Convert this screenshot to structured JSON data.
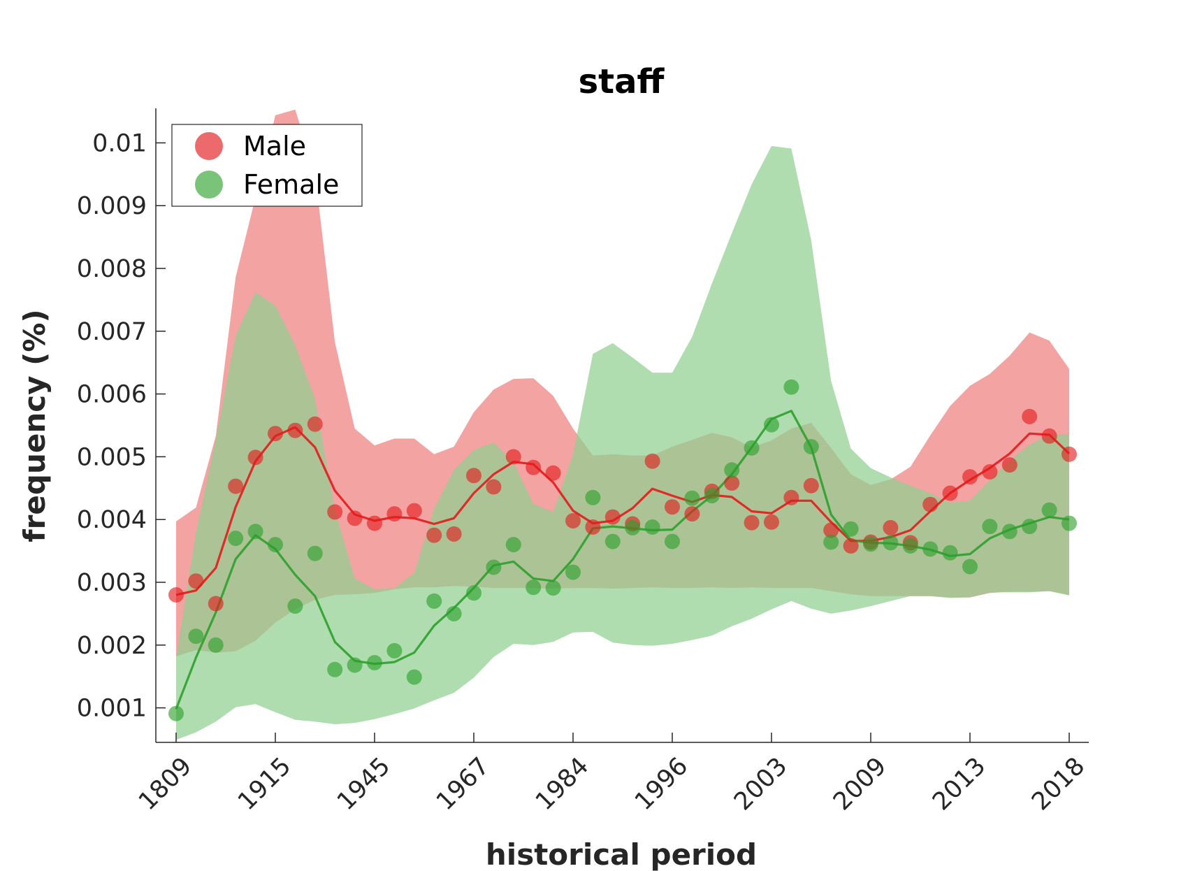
{
  "chart_data": {
    "type": "line",
    "title": "staff",
    "xlabel": "historical period",
    "ylabel": "frequency (%)",
    "ylim": [
      0.00045,
      0.01055
    ],
    "xtick_labels": [
      "1809",
      "1915",
      "1945",
      "1967",
      "1984",
      "1996",
      "2003",
      "2009",
      "2013",
      "2018"
    ],
    "ytick_values": [
      0.001,
      0.002,
      0.003,
      0.004,
      0.005,
      0.006,
      0.007,
      0.008,
      0.009,
      0.01
    ],
    "ytick_labels": [
      "0.001",
      "0.002",
      "0.003",
      "0.004",
      "0.005",
      "0.006",
      "0.007",
      "0.008",
      "0.009",
      "0.01"
    ],
    "legend_position": "top-left",
    "grid": false,
    "series": [
      {
        "name": "Male",
        "color": "#e41a1c",
        "band_color": "#f08080",
        "points": [
          0.0028,
          0.00302,
          0.00266,
          0.00453,
          0.00499,
          0.00537,
          0.00542,
          0.00552,
          0.00412,
          0.00402,
          0.00394,
          0.00409,
          0.00414,
          0.00375,
          0.00377,
          0.0047,
          0.00452,
          0.005,
          0.00483,
          0.00474,
          0.00398,
          0.00388,
          0.00404,
          0.00393,
          0.00493,
          0.0042,
          0.00409,
          0.00445,
          0.00458,
          0.00395,
          0.00396,
          0.00435,
          0.00454,
          0.00383,
          0.00358,
          0.00364,
          0.00387,
          0.00363,
          0.00424,
          0.00442,
          0.00468,
          0.00476,
          0.00487,
          0.00564,
          0.00533,
          0.00504
        ],
        "trend": [
          0.0028,
          0.00287,
          0.00323,
          0.0042,
          0.00493,
          0.00533,
          0.00547,
          0.00515,
          0.00446,
          0.00408,
          0.00398,
          0.00404,
          0.00402,
          0.00393,
          0.00402,
          0.00442,
          0.00472,
          0.00492,
          0.00488,
          0.00459,
          0.00414,
          0.00394,
          0.00398,
          0.00418,
          0.00449,
          0.00438,
          0.00428,
          0.00439,
          0.00436,
          0.00413,
          0.0041,
          0.0043,
          0.0043,
          0.00396,
          0.00366,
          0.00366,
          0.00372,
          0.00383,
          0.00413,
          0.00442,
          0.00463,
          0.00482,
          0.00505,
          0.00537,
          0.00535,
          0.00505
        ],
        "band_upper": [
          0.00397,
          0.00419,
          0.00533,
          0.00786,
          0.00913,
          0.01044,
          0.01053,
          0.00952,
          0.00683,
          0.00545,
          0.00518,
          0.00529,
          0.00529,
          0.00504,
          0.00516,
          0.00571,
          0.00607,
          0.00624,
          0.00625,
          0.00597,
          0.00545,
          0.00502,
          0.00504,
          0.00502,
          0.00502,
          0.00516,
          0.00527,
          0.00538,
          0.00531,
          0.00515,
          0.00526,
          0.00545,
          0.00554,
          0.00514,
          0.00472,
          0.00455,
          0.00464,
          0.00484,
          0.00534,
          0.00581,
          0.00613,
          0.00632,
          0.00661,
          0.00698,
          0.00685,
          0.0064
        ],
        "band_lower": [
          0.00182,
          0.00192,
          0.00188,
          0.0019,
          0.00207,
          0.00236,
          0.00257,
          0.00272,
          0.0028,
          0.00281,
          0.00283,
          0.00289,
          0.00292,
          0.00292,
          0.00294,
          0.00293,
          0.00291,
          0.00291,
          0.00291,
          0.0029,
          0.00291,
          0.00291,
          0.0029,
          0.00291,
          0.00292,
          0.00291,
          0.00291,
          0.00292,
          0.00291,
          0.00292,
          0.00291,
          0.00291,
          0.00291,
          0.00286,
          0.00281,
          0.00278,
          0.00278,
          0.00278,
          0.00278,
          0.00276,
          0.00276,
          0.00283,
          0.00285,
          0.00285,
          0.00286,
          0.0028
        ]
      },
      {
        "name": "Female",
        "color": "#2ca02c",
        "band_color": "#90d090",
        "points": [
          0.00091,
          0.00214,
          0.002,
          0.0037,
          0.00381,
          0.0036,
          0.00262,
          0.00346,
          0.00161,
          0.00168,
          0.00172,
          0.00191,
          0.00149,
          0.0027,
          0.0025,
          0.00283,
          0.00324,
          0.0036,
          0.00292,
          0.00291,
          0.00316,
          0.00435,
          0.00365,
          0.00387,
          0.00388,
          0.00365,
          0.00434,
          0.00438,
          0.00479,
          0.00514,
          0.00551,
          0.00611,
          0.00516,
          0.00364,
          0.00385,
          0.00361,
          0.00363,
          0.00358,
          0.00353,
          0.00347,
          0.00325,
          0.00389,
          0.00381,
          0.00389,
          0.00415,
          0.00394
        ],
        "trend": [
          0.00098,
          0.0018,
          0.00252,
          0.00337,
          0.00375,
          0.00353,
          0.00312,
          0.00278,
          0.00205,
          0.00175,
          0.0017,
          0.00173,
          0.00188,
          0.00231,
          0.00259,
          0.00291,
          0.00327,
          0.00333,
          0.00306,
          0.00302,
          0.00337,
          0.00386,
          0.00389,
          0.00386,
          0.00383,
          0.00384,
          0.00413,
          0.00438,
          0.00472,
          0.00515,
          0.0056,
          0.00573,
          0.00515,
          0.00408,
          0.00367,
          0.00363,
          0.00362,
          0.00358,
          0.00352,
          0.00342,
          0.00345,
          0.0037,
          0.00384,
          0.00394,
          0.00404,
          0.004
        ],
        "band_upper": [
          0.0018,
          0.0038,
          0.00527,
          0.00693,
          0.00762,
          0.00741,
          0.00678,
          0.00592,
          0.00415,
          0.00306,
          0.00289,
          0.00291,
          0.00315,
          0.00417,
          0.00479,
          0.00511,
          0.00523,
          0.00491,
          0.00425,
          0.00412,
          0.00504,
          0.00664,
          0.00681,
          0.00658,
          0.00634,
          0.00634,
          0.00691,
          0.00776,
          0.00856,
          0.00934,
          0.00995,
          0.00991,
          0.00845,
          0.00621,
          0.00513,
          0.00482,
          0.00467,
          0.00454,
          0.00442,
          0.00427,
          0.0043,
          0.00463,
          0.00494,
          0.00519,
          0.00536,
          0.00536
        ],
        "band_lower": [
          0.00049,
          0.00061,
          0.00078,
          0.00101,
          0.00106,
          0.00093,
          0.00081,
          0.00078,
          0.00074,
          0.00076,
          0.00082,
          0.0009,
          0.00099,
          0.00112,
          0.00124,
          0.00148,
          0.00181,
          0.00202,
          0.002,
          0.00205,
          0.0022,
          0.00221,
          0.00204,
          0.002,
          0.00199,
          0.00202,
          0.00208,
          0.00215,
          0.0023,
          0.00242,
          0.00257,
          0.0027,
          0.00258,
          0.0025,
          0.00255,
          0.00262,
          0.0027,
          0.00278,
          0.00278,
          0.00275,
          0.00276,
          0.00284,
          0.00284,
          0.00284,
          0.00286,
          0.00279
        ]
      }
    ],
    "legend": [
      {
        "label": "Male",
        "color": "#ec6a6b"
      },
      {
        "label": "Female",
        "color": "#7ac47a"
      }
    ]
  }
}
